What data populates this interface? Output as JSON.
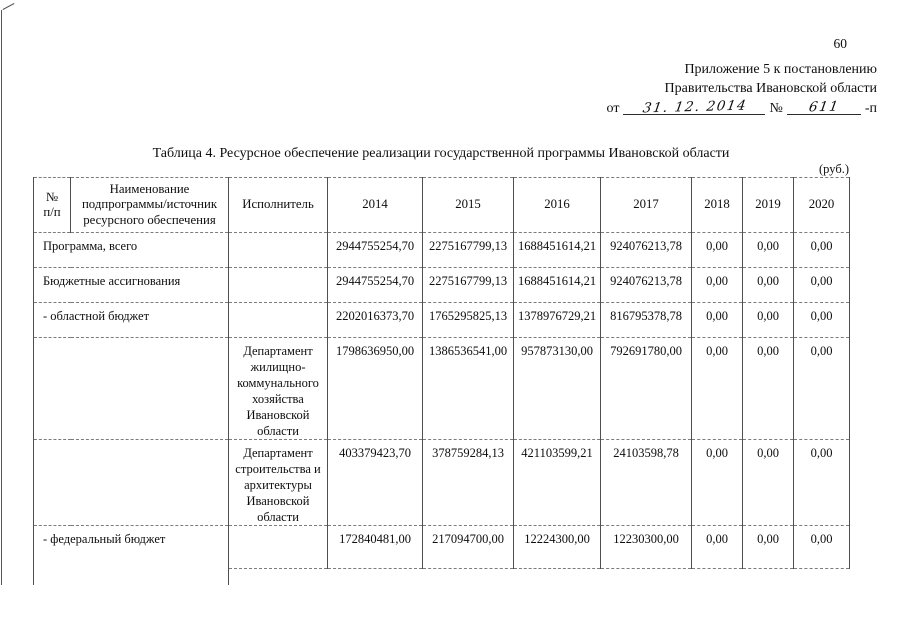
{
  "page": {
    "number": "60"
  },
  "appendix": {
    "line1": "Приложение 5 к постановлению",
    "line2": "Правительства Ивановской области",
    "from_label": "от",
    "date_value": "31. 12. 2014",
    "number_label": "№",
    "number_value": "611",
    "suffix": "-п"
  },
  "title": "Таблица 4. Ресурсное обеспечение реализации государственной программы Ивановской области",
  "unit_label": "(руб.)",
  "table": {
    "headers": [
      "№\nп/п",
      "Наименование подпрограммы/источник ресурсного обеспечения",
      "Исполнитель",
      "2014",
      "2015",
      "2016",
      "2017",
      "2018",
      "2019",
      "2020"
    ],
    "rows": [
      {
        "name": "Программа, всего",
        "executor": "",
        "values": [
          "2944755254,70",
          "2275167799,13",
          "1688451614,21",
          "924076213,78",
          "0,00",
          "0,00",
          "0,00"
        ]
      },
      {
        "name": "Бюджетные ассигнования",
        "executor": "",
        "values": [
          "2944755254,70",
          "2275167799,13",
          "1688451614,21",
          "924076213,78",
          "0,00",
          "0,00",
          "0,00"
        ]
      },
      {
        "name": "- областной бюджет",
        "executor": "",
        "values": [
          "2202016373,70",
          "1765295825,13",
          "1378976729,21",
          "816795378,78",
          "0,00",
          "0,00",
          "0,00"
        ]
      },
      {
        "name": "",
        "executor": "Департамент жилищно-коммунального хозяйства Ивановской области",
        "values": [
          "1798636950,00",
          "1386536541,00",
          "957873130,00",
          "792691780,00",
          "0,00",
          "0,00",
          "0,00"
        ]
      },
      {
        "name": "",
        "executor": "Департамент строительства и архитектуры Ивановской области",
        "values": [
          "403379423,70",
          "378759284,13",
          "421103599,21",
          "24103598,78",
          "0,00",
          "0,00",
          "0,00"
        ]
      },
      {
        "name": "- федеральный бюджет",
        "executor": "",
        "values": [
          "172840481,00",
          "217094700,00",
          "12224300,00",
          "12230300,00",
          "0,00",
          "0,00",
          "0,00"
        ]
      }
    ]
  }
}
